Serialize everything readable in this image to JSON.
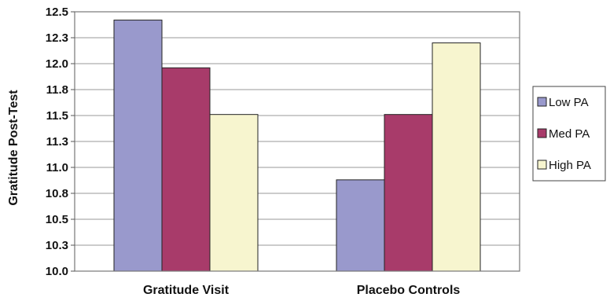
{
  "chart_data": {
    "type": "bar",
    "title": "",
    "xlabel": "",
    "ylabel": "Gratitude Post-Test",
    "categories": [
      "Gratitude Visit",
      "Placebo Controls"
    ],
    "ylim": [
      10.0,
      12.5
    ],
    "yticks": [
      "10.0",
      "10.3",
      "10.5",
      "10.8",
      "11.0",
      "11.3",
      "11.5",
      "11.8",
      "12.0",
      "12.3",
      "12.5"
    ],
    "grid": true,
    "legend_position": "right",
    "series": [
      {
        "name": "Low PA",
        "values": [
          12.42,
          10.88
        ],
        "color": "#9999cc"
      },
      {
        "name": "Med PA",
        "values": [
          11.96,
          11.51
        ],
        "color": "#a83b6a"
      },
      {
        "name": "High PA",
        "values": [
          11.51,
          12.2
        ],
        "color": "#f7f5cf"
      }
    ]
  }
}
